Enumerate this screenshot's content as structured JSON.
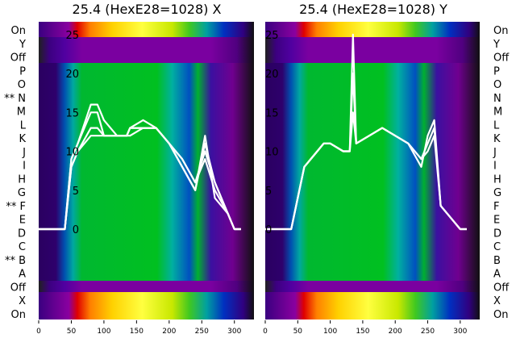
{
  "chart_data": [
    {
      "type": "heatmap",
      "title": "25.4 (HexE28=1028) X",
      "xlim": [
        0,
        330
      ],
      "xticks": [
        0,
        50,
        100,
        150,
        200,
        250,
        300
      ],
      "yticks_right": [
        0,
        5,
        10,
        15,
        20,
        25
      ],
      "row_labels_left": [
        "On",
        "Y",
        "Off",
        "P",
        "O",
        "** N",
        "M",
        "L",
        "K",
        "J",
        "I",
        "H",
        "G",
        "** F",
        "E",
        "D",
        "C",
        "** B",
        "A",
        "Off",
        "X",
        "On"
      ],
      "overlay_lines_x": [
        0,
        40,
        50,
        60,
        80,
        90,
        100,
        120,
        135,
        140,
        160,
        180,
        200,
        220,
        240,
        255,
        270,
        290,
        300,
        310
      ],
      "overlay_lines": [
        [
          0,
          0,
          9,
          11,
          15,
          15,
          12,
          12,
          12,
          13,
          13,
          13,
          11,
          9,
          6,
          10,
          6,
          2,
          0,
          0
        ],
        [
          0,
          0,
          9,
          11,
          16,
          16,
          14,
          12,
          12,
          13,
          13,
          13,
          11,
          9,
          6,
          9,
          5,
          2,
          0,
          0
        ],
        [
          0,
          0,
          8,
          10,
          13,
          13,
          12,
          12,
          12,
          13,
          14,
          13,
          11,
          8,
          5,
          11,
          6,
          2,
          0,
          0
        ],
        [
          0,
          0,
          8,
          10,
          12,
          12,
          12,
          12,
          12,
          12,
          13,
          13,
          11,
          8,
          5,
          12,
          4,
          2,
          0,
          0
        ]
      ]
    },
    {
      "type": "heatmap",
      "title": "25.4 (HexE28=1028) Y",
      "xlim": [
        0,
        330
      ],
      "xticks": [
        0,
        50,
        100,
        150,
        200,
        250,
        300
      ],
      "yticks_right": [
        0,
        5,
        10,
        15,
        20,
        25
      ],
      "row_labels_right": [
        "On",
        "Y",
        "Off",
        "P",
        "O",
        "N",
        "M",
        "L",
        "K",
        "J",
        "I",
        "H",
        "G",
        "F",
        "E",
        "D",
        "C",
        "B",
        "A",
        "Off",
        "X",
        "On"
      ],
      "overlay_lines_x": [
        0,
        40,
        50,
        60,
        80,
        90,
        100,
        120,
        130,
        135,
        140,
        160,
        180,
        200,
        220,
        240,
        250,
        260,
        270,
        290,
        300,
        310
      ],
      "overlay_lines": [
        [
          0,
          0,
          4,
          8,
          10,
          11,
          11,
          10,
          10,
          25,
          11,
          12,
          13,
          12,
          11,
          9,
          11,
          13,
          3,
          1,
          0,
          0
        ],
        [
          0,
          0,
          4,
          8,
          10,
          11,
          11,
          10,
          10,
          20,
          11,
          12,
          13,
          12,
          11,
          8,
          12,
          14,
          3,
          1,
          0,
          0
        ],
        [
          0,
          0,
          4,
          8,
          10,
          11,
          11,
          10,
          10,
          15,
          11,
          12,
          13,
          12,
          11,
          9,
          10,
          12,
          3,
          1,
          0,
          0
        ]
      ]
    }
  ]
}
